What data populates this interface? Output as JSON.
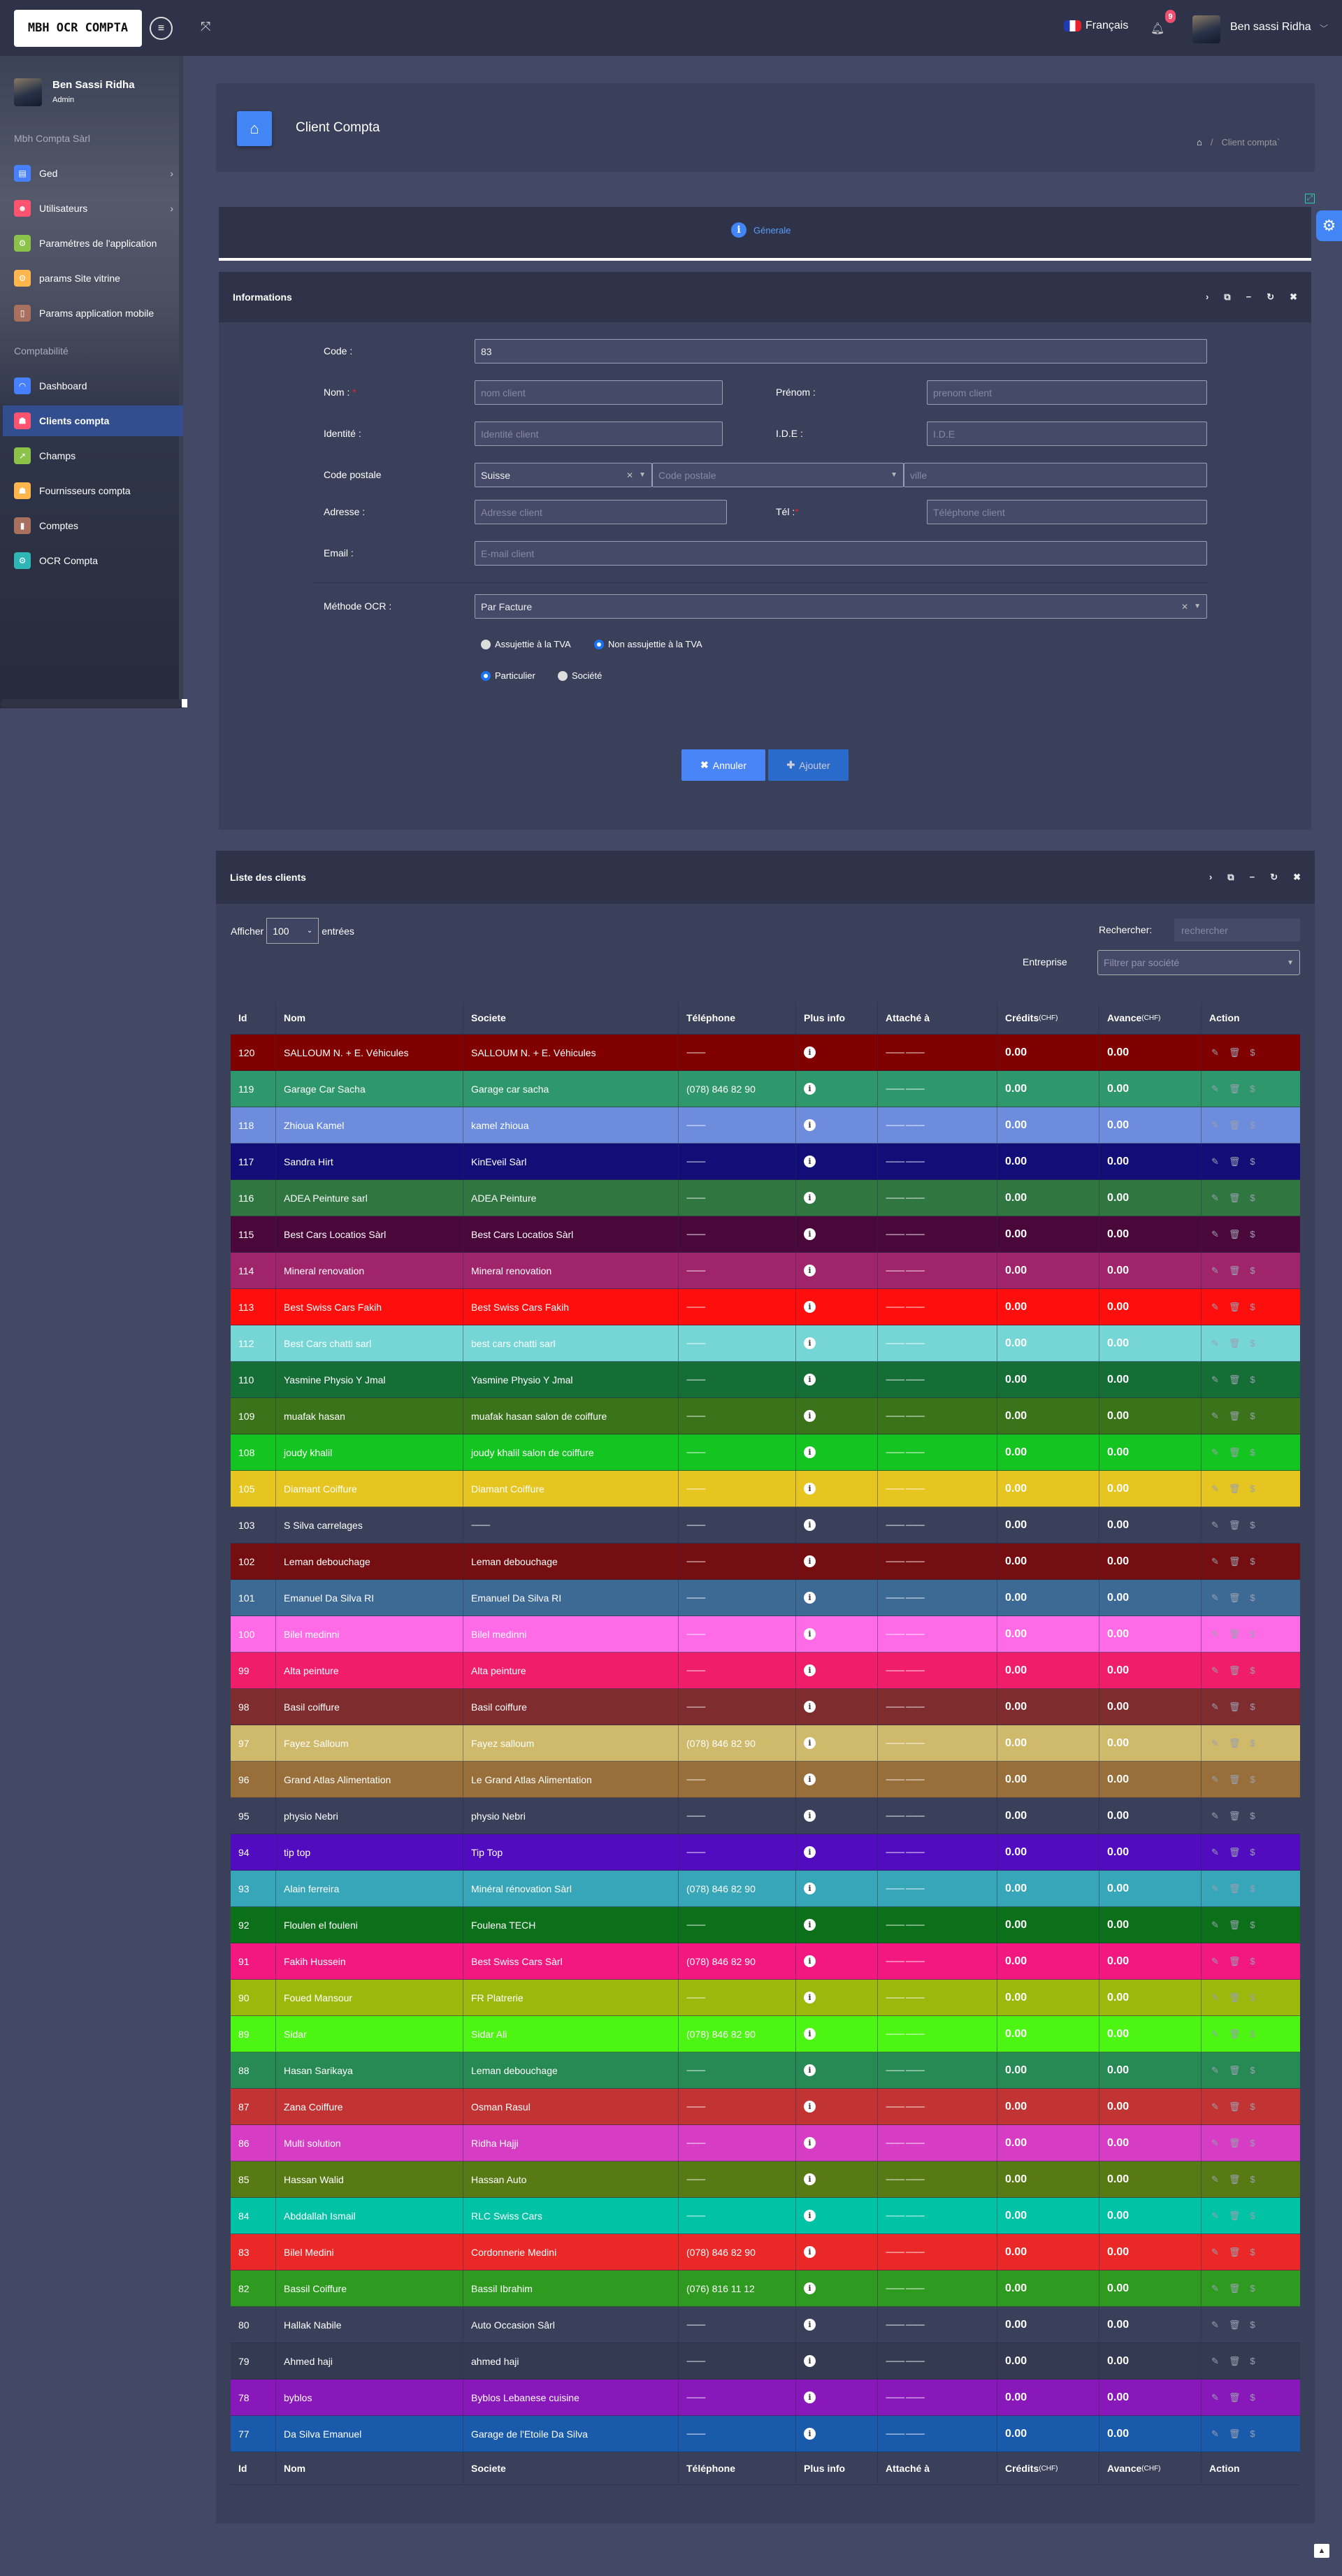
{
  "topbar": {
    "logo_text": "MBH OCR COMPTA",
    "language": "Français",
    "notifications": "9",
    "user": "Ben sassi Ridha"
  },
  "sidebar": {
    "user_name": "Ben Sassi Ridha",
    "user_role": "Admin",
    "section1": "Mbh Compta Sàrl",
    "section2": "Comptabilité",
    "items1": [
      {
        "label": "Ged",
        "color": "#4680ff",
        "icon": "folder-icon",
        "glyph": "▤",
        "arrow": true
      },
      {
        "label": "Utilisateurs",
        "color": "#ff5370",
        "icon": "users-icon",
        "glyph": "☻",
        "arrow": true
      },
      {
        "label": "Paramétres de l'application",
        "color": "#8bc34a",
        "icon": "settings-icon",
        "glyph": "⚙"
      },
      {
        "label": "params Site vitrine",
        "color": "#ffb64d",
        "icon": "settings-icon",
        "glyph": "⚙"
      },
      {
        "label": "Params application mobile",
        "color": "#a97060",
        "icon": "mobile-icon",
        "glyph": "▯"
      }
    ],
    "items2": [
      {
        "label": "Dashboard",
        "color": "#4680ff",
        "icon": "dashboard-icon",
        "glyph": "◠"
      },
      {
        "label": "Clients compta",
        "color": "#ff5370",
        "icon": "client-icon",
        "glyph": "☗",
        "active": true
      },
      {
        "label": "Champs",
        "color": "#8bc34a",
        "icon": "external-link-icon",
        "glyph": "↗"
      },
      {
        "label": "Fournisseurs compta",
        "color": "#ffb64d",
        "icon": "supplier-icon",
        "glyph": "☗"
      },
      {
        "label": "Comptes",
        "color": "#a97060",
        "icon": "contacts-book-icon",
        "glyph": "▮"
      },
      {
        "label": "OCR Compta",
        "color": "#2eb5b5",
        "icon": "ocr-icon",
        "glyph": "⚙"
      }
    ]
  },
  "page": {
    "title": "Client Compta",
    "breadcrumb": "Client compta`",
    "tab": "Génerale"
  },
  "form": {
    "title": "Informations",
    "code_label": "Code :",
    "code_value": "83",
    "nom_label": "Nom :",
    "nom_ph": "nom client",
    "prenom_label": "Prénom :",
    "prenom_ph": "prenom client",
    "identite_label": "Identité :",
    "identite_ph": "Identité client",
    "ide_label": "I.D.E :",
    "ide_ph": "I.D.E",
    "cp_label": "Code postale",
    "country": "Suisse",
    "cp_ph": "Code postale",
    "ville_ph": "ville",
    "adresse_label": "Adresse :",
    "adresse_ph": "Adresse client",
    "tel_label": "Tél :",
    "tel_ph": "Téléphone client",
    "email_label": "Email :",
    "email_ph": "E-mail client",
    "ocr_label": "Méthode OCR :",
    "ocr_value": "Par Facture",
    "tva_options": [
      "Assujettie à la TVA",
      "Non assujettie à la TVA"
    ],
    "tva_selected": 1,
    "type_options": [
      "Particulier",
      "Société"
    ],
    "type_selected": 0,
    "cancel": "Annuler",
    "add": "Ajouter"
  },
  "list": {
    "title": "Liste des clients",
    "show_prefix": "Afficher",
    "show_value": "100",
    "show_suffix": "entrées",
    "search_label": "Rechercher:",
    "search_ph": "rechercher",
    "company_label": "Entreprise",
    "company_ph": "Filtrer par société",
    "columns": [
      "Id",
      "Nom",
      "Societe",
      "Téléphone",
      "Plus info",
      "Attaché à",
      "Crédits",
      "Avance",
      "Action"
    ],
    "currency": "(CHF)",
    "rows": [
      {
        "id": "120",
        "nom": "SALLOUM N. + E. Véhicules",
        "societe": "SALLOUM N. + E. Véhicules",
        "tel": "----------",
        "attache": "---------- ----------",
        "credits": "0.00",
        "avance": "0.00",
        "color": "#800000"
      },
      {
        "id": "119",
        "nom": "Garage Car Sacha",
        "societe": "Garage car sacha",
        "tel": "(078) 846 82 90",
        "attache": "---------- ----------",
        "credits": "0.00",
        "avance": "0.00",
        "color": "#2f976c"
      },
      {
        "id": "118",
        "nom": "Zhioua Kamel",
        "societe": "kamel zhioua",
        "tel": "----------",
        "attache": "---------- ----------",
        "credits": "0.00",
        "avance": "0.00",
        "color": "#6d8cdc"
      },
      {
        "id": "117",
        "nom": "Sandra Hirt",
        "societe": "KinEveil Sàrl",
        "tel": "----------",
        "attache": "---------- ----------",
        "credits": "0.00",
        "avance": "0.00",
        "color": "#120e78"
      },
      {
        "id": "116",
        "nom": "ADEA Peinture sarl",
        "societe": "ADEA Peinture",
        "tel": "----------",
        "attache": "---------- ----------",
        "credits": "0.00",
        "avance": "0.00",
        "color": "#2f7640"
      },
      {
        "id": "115",
        "nom": "Best Cars Locatios Sàrl",
        "societe": "Best Cars Locatios Sàrl",
        "tel": "----------",
        "attache": "---------- ----------",
        "credits": "0.00",
        "avance": "0.00",
        "color": "#4a083a"
      },
      {
        "id": "114",
        "nom": "Mineral renovation",
        "societe": "Mineral renovation",
        "tel": "----------",
        "attache": "---------- ----------",
        "credits": "0.00",
        "avance": "0.00",
        "color": "#a0246a"
      },
      {
        "id": "113",
        "nom": "Best Swiss Cars Fakih",
        "societe": "Best Swiss Cars Fakih",
        "tel": "----------",
        "attache": "---------- ----------",
        "credits": "0.00",
        "avance": "0.00",
        "color": "#ff0e0e"
      },
      {
        "id": "112",
        "nom": "Best Cars chatti sarl",
        "societe": "best cars chatti sarl",
        "tel": "----------",
        "attache": "---------- ----------",
        "credits": "0.00",
        "avance": "0.00",
        "color": "#76d6d6"
      },
      {
        "id": "110",
        "nom": "Yasmine Physio Y Jmal",
        "societe": "Yasmine Physio Y Jmal",
        "tel": "----------",
        "attache": "---------- ----------",
        "credits": "0.00",
        "avance": "0.00",
        "color": "#166e37"
      },
      {
        "id": "109",
        "nom": "muafak hasan",
        "societe": "muafak hasan salon de coiffure",
        "tel": "----------",
        "attache": "---------- ----------",
        "credits": "0.00",
        "avance": "0.00",
        "color": "#3b731b"
      },
      {
        "id": "108",
        "nom": "joudy khalil",
        "societe": "joudy khalil salon de coiffure",
        "tel": "----------",
        "attache": "---------- ----------",
        "credits": "0.00",
        "avance": "0.00",
        "color": "#14c421"
      },
      {
        "id": "105",
        "nom": "Diamant Coiffure",
        "societe": "Diamant Coiffure",
        "tel": "----------",
        "attache": "---------- ----------",
        "credits": "0.00",
        "avance": "0.00",
        "color": "#e6c520"
      },
      {
        "id": "103",
        "nom": "S Silva carrelages",
        "societe": "----------",
        "tel": "----------",
        "attache": "---------- ----------",
        "credits": "0.00",
        "avance": "0.00",
        "color": "#3a3f5a"
      },
      {
        "id": "102",
        "nom": "Leman debouchage",
        "societe": "Leman debouchage",
        "tel": "----------",
        "attache": "---------- ----------",
        "credits": "0.00",
        "avance": "0.00",
        "color": "#740e10"
      },
      {
        "id": "101",
        "nom": "Emanuel Da Silva RI",
        "societe": "Emanuel Da Silva RI",
        "tel": "----------",
        "attache": "---------- ----------",
        "credits": "0.00",
        "avance": "0.00",
        "color": "#3d6a94"
      },
      {
        "id": "100",
        "nom": "Bilel medinni",
        "societe": "Bilel medinni",
        "tel": "----------",
        "attache": "---------- ----------",
        "credits": "0.00",
        "avance": "0.00",
        "color": "#ff6be6"
      },
      {
        "id": "99",
        "nom": "Alta peinture",
        "societe": "Alta peinture",
        "tel": "----------",
        "attache": "---------- ----------",
        "credits": "0.00",
        "avance": "0.00",
        "color": "#f01e6a"
      },
      {
        "id": "98",
        "nom": "Basil coiffure",
        "societe": "Basil coiffure",
        "tel": "----------",
        "attache": "---------- ----------",
        "credits": "0.00",
        "avance": "0.00",
        "color": "#7e2c2e"
      },
      {
        "id": "97",
        "nom": "Fayez Salloum",
        "societe": "Fayez salloum",
        "tel": "(078) 846 82 90",
        "attache": "---------- ----------",
        "credits": "0.00",
        "avance": "0.00",
        "color": "#cfb96a"
      },
      {
        "id": "96",
        "nom": "Grand Atlas Alimentation",
        "societe": "Le Grand Atlas Alimentation",
        "tel": "----------",
        "attache": "---------- ----------",
        "credits": "0.00",
        "avance": "0.00",
        "color": "#986f3a"
      },
      {
        "id": "95",
        "nom": "physio Nebri",
        "societe": "physio Nebri",
        "tel": "----------",
        "attache": "---------- ----------",
        "credits": "0.00",
        "avance": "0.00",
        "color": "#3a3f5a"
      },
      {
        "id": "94",
        "nom": "tip top",
        "societe": "Tip Top",
        "tel": "----------",
        "attache": "---------- ----------",
        "credits": "0.00",
        "avance": "0.00",
        "color": "#510cc0"
      },
      {
        "id": "93",
        "nom": "Alain ferreira",
        "societe": "Minéral rénovation Sàrl",
        "tel": "(078) 846 82 90",
        "attache": "---------- ----------",
        "credits": "0.00",
        "avance": "0.00",
        "color": "#36a6b8"
      },
      {
        "id": "92",
        "nom": "Floulen el fouleni",
        "societe": "Foulena TECH",
        "tel": "----------",
        "attache": "---------- ----------",
        "credits": "0.00",
        "avance": "0.00",
        "color": "#0b7019"
      },
      {
        "id": "91",
        "nom": "Fakih Hussein",
        "societe": "Best Swiss Cars Sàrl",
        "tel": "(078) 846 82 90",
        "attache": "---------- ----------",
        "credits": "0.00",
        "avance": "0.00",
        "color": "#f21880"
      },
      {
        "id": "90",
        "nom": "Foued Mansour",
        "societe": "FR Platrerie",
        "tel": "----------",
        "attache": "---------- ----------",
        "credits": "0.00",
        "avance": "0.00",
        "color": "#9cb80c"
      },
      {
        "id": "89",
        "nom": "Sidar",
        "societe": "Sidar Ali",
        "tel": "(078) 846 82 90",
        "attache": "---------- ----------",
        "credits": "0.00",
        "avance": "0.00",
        "color": "#4cf512"
      },
      {
        "id": "88",
        "nom": "Hasan Sarikaya",
        "societe": "Leman debouchage",
        "tel": "----------",
        "attache": "---------- ----------",
        "credits": "0.00",
        "avance": "0.00",
        "color": "#278a55"
      },
      {
        "id": "87",
        "nom": "Zana Coiffure",
        "societe": "Osman Rasul",
        "tel": "----------",
        "attache": "---------- ----------",
        "credits": "0.00",
        "avance": "0.00",
        "color": "#c23434"
      },
      {
        "id": "86",
        "nom": "Multi solution",
        "societe": "Ridha Hajji",
        "tel": "----------",
        "attache": "---------- ----------",
        "credits": "0.00",
        "avance": "0.00",
        "color": "#d63cc4"
      },
      {
        "id": "85",
        "nom": "Hassan Walid",
        "societe": "Hassan Auto",
        "tel": "----------",
        "attache": "---------- ----------",
        "credits": "0.00",
        "avance": "0.00",
        "color": "#587a14"
      },
      {
        "id": "84",
        "nom": "Abddallah Ismail",
        "societe": "RLC Swiss Cars",
        "tel": "----------",
        "attache": "---------- ----------",
        "credits": "0.00",
        "avance": "0.00",
        "color": "#00c3a6"
      },
      {
        "id": "83",
        "nom": "Bilel Medini",
        "societe": "Cordonnerie Medini",
        "tel": "(078) 846 82 90",
        "attache": "---------- ----------",
        "credits": "0.00",
        "avance": "0.00",
        "color": "#ea2828"
      },
      {
        "id": "82",
        "nom": "Bassil Coiffure",
        "societe": "Bassil Ibrahim",
        "tel": "(076) 816 11 12",
        "attache": "---------- ----------",
        "credits": "0.00",
        "avance": "0.00",
        "color": "#2f9a20"
      },
      {
        "id": "80",
        "nom": "Hallak Nabile",
        "societe": "Auto Occasion Sârl",
        "tel": "----------",
        "attache": "---------- ----------",
        "credits": "0.00",
        "avance": "0.00",
        "color": "#3a3f5a"
      },
      {
        "id": "79",
        "nom": "Ahmed haji",
        "societe": "ahmed haji",
        "tel": "----------",
        "attache": "---------- ----------",
        "credits": "0.00",
        "avance": "0.00",
        "color": "#353a53"
      },
      {
        "id": "78",
        "nom": "byblos",
        "societe": "Byblos Lebanese cuisine",
        "tel": "----------",
        "attache": "---------- ----------",
        "credits": "0.00",
        "avance": "0.00",
        "color": "#8818b9"
      },
      {
        "id": "77",
        "nom": "Da Silva Emanuel",
        "societe": "Garage de l'Etoile Da Silva",
        "tel": "----------",
        "attache": "---------- ----------",
        "credits": "0.00",
        "avance": "0.00",
        "color": "#1a5aab"
      }
    ]
  }
}
